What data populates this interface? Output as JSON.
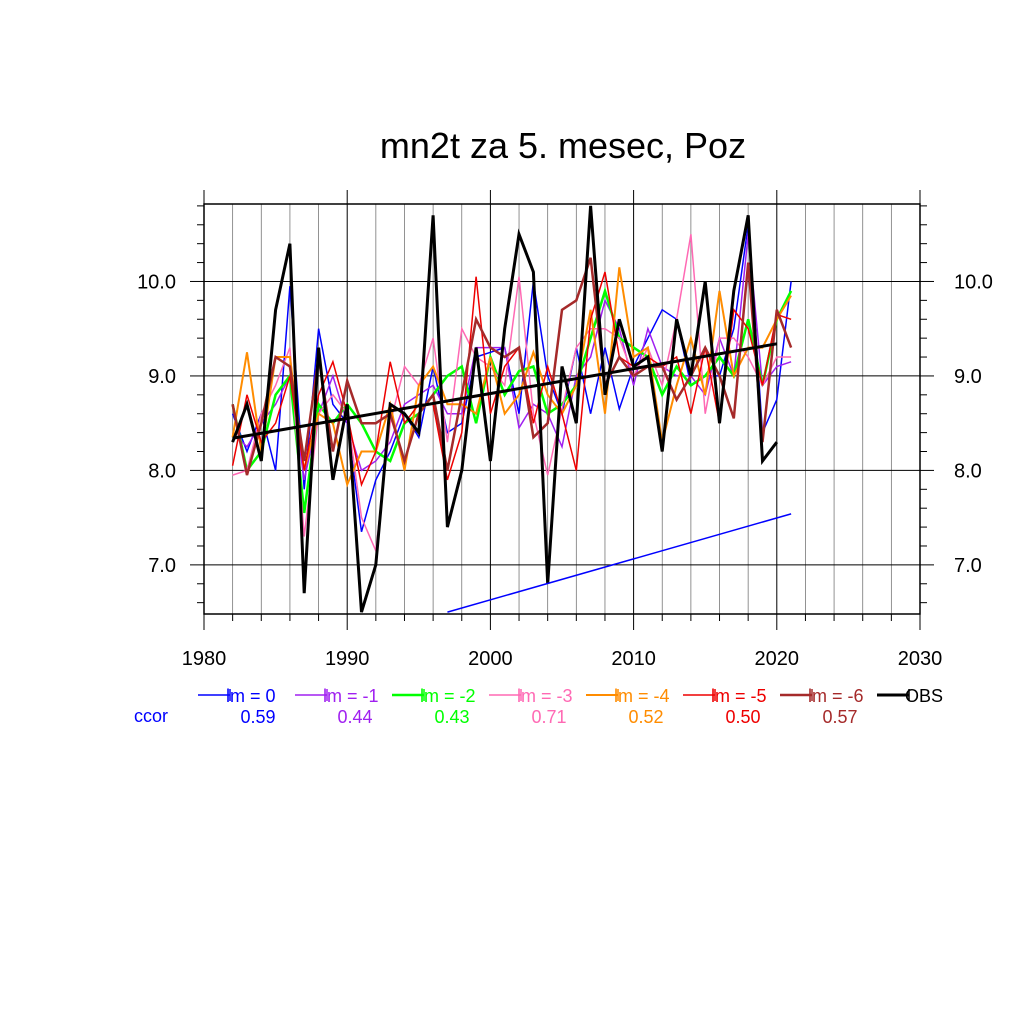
{
  "chart_data": {
    "type": "line",
    "title": "mn2t za 5. mesec, Poz",
    "xlabel": "",
    "ylabel": "",
    "xlim": [
      1980,
      2030
    ],
    "ylim": [
      6.48,
      10.82
    ],
    "x_ticks": [
      {
        "value": 1980,
        "label": "1980"
      },
      {
        "value": 1990,
        "label": "1990"
      },
      {
        "value": 2000,
        "label": "2000"
      },
      {
        "value": 2010,
        "label": "2010"
      },
      {
        "value": 2020,
        "label": "2020"
      },
      {
        "value": 2030,
        "label": "2030"
      }
    ],
    "y_ticks": [
      {
        "value": 7.0,
        "label": "7.0"
      },
      {
        "value": 8.0,
        "label": "8.0"
      },
      {
        "value": 9.0,
        "label": "9.0"
      },
      {
        "value": 10.0,
        "label": "10.0"
      }
    ],
    "grid": true,
    "legend_position": "bottom",
    "x": [
      1982,
      1983,
      1984,
      1985,
      1986,
      1987,
      1988,
      1989,
      1990,
      1991,
      1992,
      1993,
      1994,
      1995,
      1996,
      1997,
      1998,
      1999,
      2000,
      2001,
      2002,
      2003,
      2004,
      2005,
      2006,
      2007,
      2008,
      2009,
      2010,
      2011,
      2012,
      2013,
      2014,
      2015,
      2016,
      2017,
      2018,
      2019,
      2020,
      2021
    ],
    "series": [
      {
        "name": "lm = 0",
        "color": "#0000ff",
        "width": 1.5,
        "values": [
          8.6,
          8.2,
          8.6,
          8.0,
          9.95,
          7.8,
          9.5,
          8.7,
          8.5,
          7.35,
          7.9,
          8.2,
          8.6,
          8.35,
          9.1,
          8.4,
          8.5,
          9.2,
          9.25,
          9.3,
          8.6,
          10.0,
          9.0,
          8.6,
          9.3,
          8.6,
          9.3,
          8.65,
          9.1,
          9.4,
          9.7,
          9.6,
          8.9,
          9.0,
          9.0,
          9.5,
          10.6,
          8.4,
          8.75,
          10.0
        ]
      },
      {
        "name": "lm = -1",
        "color": "#a020f0",
        "width": 1.5,
        "values": [
          8.4,
          8.25,
          8.5,
          8.7,
          9.0,
          7.9,
          8.6,
          9.0,
          8.5,
          8.0,
          8.1,
          8.3,
          8.7,
          8.8,
          8.9,
          8.6,
          8.6,
          9.3,
          9.3,
          9.3,
          8.45,
          8.7,
          8.6,
          8.25,
          9.0,
          9.2,
          9.8,
          9.5,
          8.9,
          9.5,
          9.1,
          9.0,
          9.0,
          8.8,
          9.4,
          9.0,
          10.5,
          8.9,
          9.1,
          9.15
        ]
      },
      {
        "name": "lm = -2",
        "color": "#00ff00",
        "width": 2.5,
        "values": [
          8.7,
          8.0,
          8.2,
          8.8,
          9.0,
          7.55,
          8.7,
          8.5,
          8.7,
          8.5,
          8.2,
          8.1,
          8.5,
          8.6,
          8.8,
          9.0,
          9.1,
          8.5,
          9.2,
          8.8,
          9.05,
          9.1,
          8.6,
          8.7,
          8.9,
          9.4,
          9.9,
          9.4,
          9.3,
          9.2,
          8.8,
          9.1,
          8.9,
          9.0,
          9.2,
          9.0,
          9.6,
          8.9,
          9.6,
          9.9
        ]
      },
      {
        "name": "lm = -3",
        "color": "#ff69b4",
        "width": 1.5,
        "values": [
          7.95,
          8.0,
          8.6,
          8.9,
          9.3,
          7.3,
          8.6,
          8.8,
          8.6,
          7.5,
          7.15,
          8.5,
          9.1,
          8.9,
          9.4,
          8.3,
          9.5,
          9.2,
          9.1,
          8.9,
          10.05,
          8.6,
          7.95,
          8.65,
          9.3,
          9.5,
          9.5,
          9.4,
          9.0,
          9.3,
          8.9,
          9.6,
          10.5,
          8.6,
          9.4,
          9.4,
          9.2,
          8.9,
          9.2,
          9.2
        ]
      },
      {
        "name": "lm = -4",
        "color": "#ff8c00",
        "width": 2.0,
        "values": [
          8.35,
          9.25,
          8.2,
          9.2,
          9.2,
          8.0,
          8.6,
          8.5,
          7.85,
          8.2,
          8.2,
          8.7,
          8.0,
          8.9,
          9.1,
          8.7,
          8.7,
          8.6,
          9.2,
          8.6,
          8.8,
          9.25,
          8.8,
          8.6,
          8.9,
          9.7,
          8.6,
          10.15,
          9.2,
          9.3,
          8.3,
          8.9,
          9.4,
          8.8,
          9.9,
          9.0,
          9.3,
          9.3,
          9.6,
          9.85
        ]
      },
      {
        "name": "lm = -5",
        "color": "#ee0000",
        "width": 1.5,
        "values": [
          8.05,
          8.8,
          8.3,
          8.5,
          9.0,
          8.0,
          8.8,
          9.15,
          8.6,
          7.85,
          8.2,
          9.15,
          8.5,
          8.7,
          8.7,
          7.9,
          8.4,
          10.05,
          8.6,
          9.1,
          9.3,
          8.5,
          9.1,
          8.6,
          8.0,
          9.6,
          10.1,
          9.2,
          9.1,
          9.2,
          9.1,
          9.2,
          8.6,
          9.3,
          8.5,
          9.7,
          9.5,
          8.9,
          9.65,
          9.6
        ]
      },
      {
        "name": "lm = -6",
        "color": "#a52a2a",
        "width": 2.5,
        "values": [
          8.7,
          7.95,
          8.5,
          9.2,
          9.1,
          8.1,
          9.2,
          8.2,
          8.95,
          8.5,
          8.5,
          8.6,
          8.1,
          8.6,
          8.8,
          8.0,
          8.8,
          9.6,
          9.3,
          9.2,
          9.3,
          8.35,
          8.5,
          9.7,
          9.8,
          10.25,
          8.9,
          9.2,
          9.0,
          9.1,
          9.1,
          8.75,
          9.0,
          9.3,
          9.0,
          8.55,
          10.2,
          8.3,
          9.7,
          9.3
        ]
      },
      {
        "name": "OBS",
        "color": "#000000",
        "width": 3.0,
        "values": [
          8.3,
          8.7,
          8.1,
          9.7,
          10.4,
          6.7,
          9.3,
          7.9,
          8.7,
          6.5,
          7.0,
          8.7,
          8.6,
          8.4,
          10.7,
          7.4,
          8.0,
          9.3,
          8.1,
          9.5,
          10.5,
          10.1,
          6.8,
          9.1,
          8.5,
          10.8,
          8.8,
          9.6,
          9.1,
          9.2,
          8.2,
          9.6,
          9.0,
          10.0,
          8.5,
          9.9,
          10.7,
          8.1,
          8.3,
          null
        ]
      }
    ],
    "trend_lines": [
      {
        "name": "OBS trend",
        "color": "#000000",
        "width": 3.0,
        "x": [
          1982,
          2020
        ],
        "y": [
          8.34,
          9.34
        ]
      },
      {
        "name": "lm = 0 trend",
        "color": "#0000ff",
        "width": 1.5,
        "x": [
          1997,
          2021
        ],
        "y": [
          6.5,
          7.54
        ]
      }
    ],
    "ccor": {
      "label": "ccor",
      "label_color": "#0000ff",
      "values": [
        "0.59",
        "0.44",
        "0.43",
        "0.71",
        "0.52",
        "0.50",
        "0.57"
      ]
    }
  }
}
